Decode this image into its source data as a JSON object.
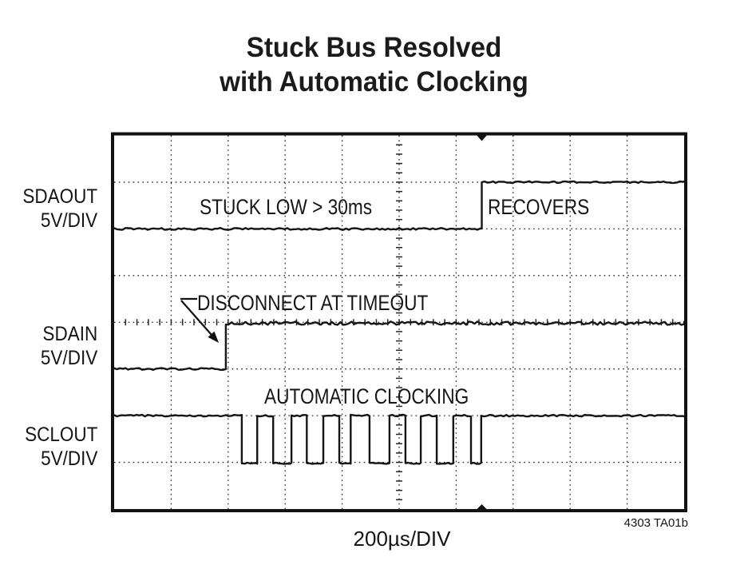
{
  "title": {
    "line1": "Stuck Bus Resolved",
    "line2": "with Automatic Clocking"
  },
  "channel_labels": [
    {
      "name": "SDAOUT",
      "scale": "5V/DIV"
    },
    {
      "name": "SDAIN",
      "scale": "5V/DIV"
    },
    {
      "name": "SCLOUT",
      "scale": "5V/DIV"
    }
  ],
  "annotations": {
    "stuck_low": "STUCK LOW > 30ms",
    "recovers": "RECOVERS",
    "disconnect": "DISCONNECT AT TIMEOUT",
    "auto_clock": "AUTOMATIC CLOCKING"
  },
  "footer": {
    "timebase": "200µs/DIV",
    "figure_id": "4303 TA01b"
  },
  "colors": {
    "trace": "#151515",
    "grid": "#262626",
    "background": "#ffffff"
  },
  "chart_data": {
    "type": "line",
    "title": "Stuck Bus Resolved with Automatic Clocking",
    "x_axis_label": "200µs/DIV",
    "volts_per_div": "5V/DIV",
    "divisions_x": 10,
    "divisions_y": 8,
    "grid": "dotted graticule, tick marks on center axes",
    "legend_position": "channel labels at left margin",
    "trigger_marker_div": 6.45,
    "series": [
      {
        "name": "SDAOUT",
        "high_div": 1.0,
        "low_div": 2.0,
        "initial_level": 0,
        "edges": [
          [
            6.45,
            1
          ]
        ],
        "noise_high": 1.1,
        "noise_low": 1.2,
        "note": "stuck low > 30ms, recovers at trigger"
      },
      {
        "name": "SDAIN",
        "high_div": 4.02,
        "low_div": 5.0,
        "initial_level": 0,
        "edges": [
          [
            1.96,
            1
          ]
        ],
        "noise_high": 2.1,
        "noise_low": 1.3,
        "note": "disconnect at timeout"
      },
      {
        "name": "SCLOUT",
        "high_div": 6.0,
        "low_div": 7.02,
        "initial_level": 1,
        "edges": [
          [
            2.24,
            0
          ],
          [
            2.51,
            1
          ],
          [
            2.79,
            0
          ],
          [
            3.11,
            1
          ],
          [
            3.38,
            0
          ],
          [
            3.67,
            1
          ],
          [
            3.95,
            0
          ],
          [
            4.15,
            1
          ],
          [
            4.48,
            0
          ],
          [
            4.83,
            1
          ],
          [
            5.11,
            0
          ],
          [
            5.38,
            1
          ],
          [
            5.66,
            0
          ],
          [
            5.95,
            1
          ],
          [
            6.26,
            0
          ],
          [
            6.44,
            1
          ]
        ],
        "noise_high": 1.1,
        "noise_low": 0.8,
        "note": "automatic clocking burst, 8 low pulses"
      }
    ]
  }
}
